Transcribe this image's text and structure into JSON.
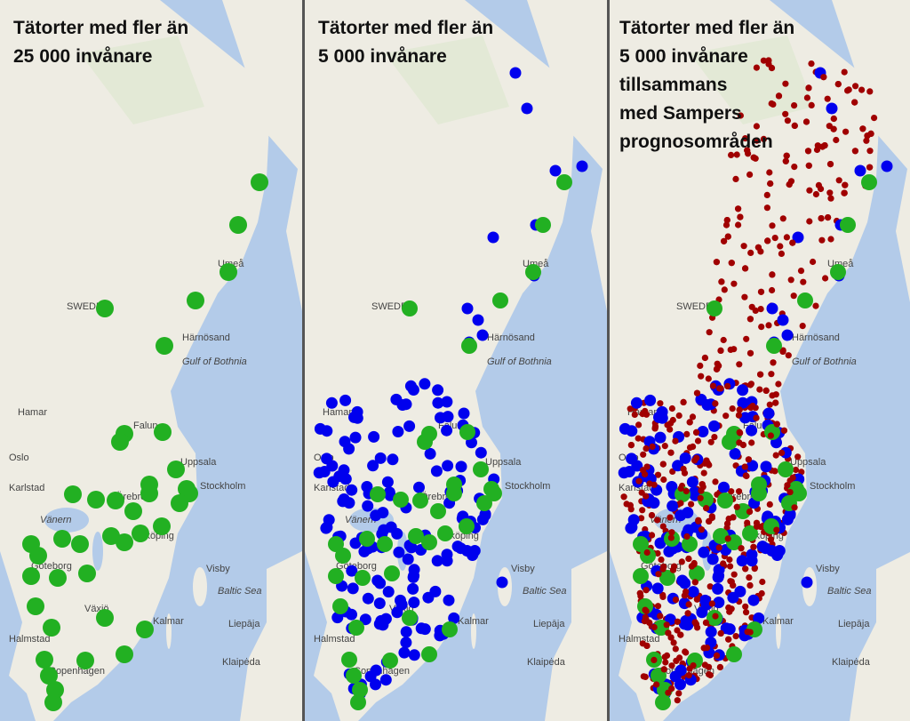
{
  "panels": [
    {
      "title_lines": [
        "Tätorter med fler än",
        "25 000 invånare"
      ]
    },
    {
      "title_lines": [
        "Tätorter med fler än",
        "5 000 invånare"
      ]
    },
    {
      "title_lines": [
        "Tätorter med fler än",
        "5 000 invånare",
        "tillsammans",
        "med Sampers",
        "prognosområden"
      ]
    }
  ],
  "map_labels": [
    "SWEDEN",
    "Härnösand",
    "Gulf of Bothnia",
    "Hamar",
    "Oslo",
    "Karlstad",
    "Vänern",
    "Uppsala",
    "Stockholm",
    "Örebro",
    "Visby",
    "Baltic Sea",
    "Kalmar",
    "Liepāja",
    "Klaipėda",
    "Halmstad",
    "Växjö",
    "Göteborg",
    "Copenhagen",
    "Umeå",
    "Falun",
    "Nyköping"
  ]
}
